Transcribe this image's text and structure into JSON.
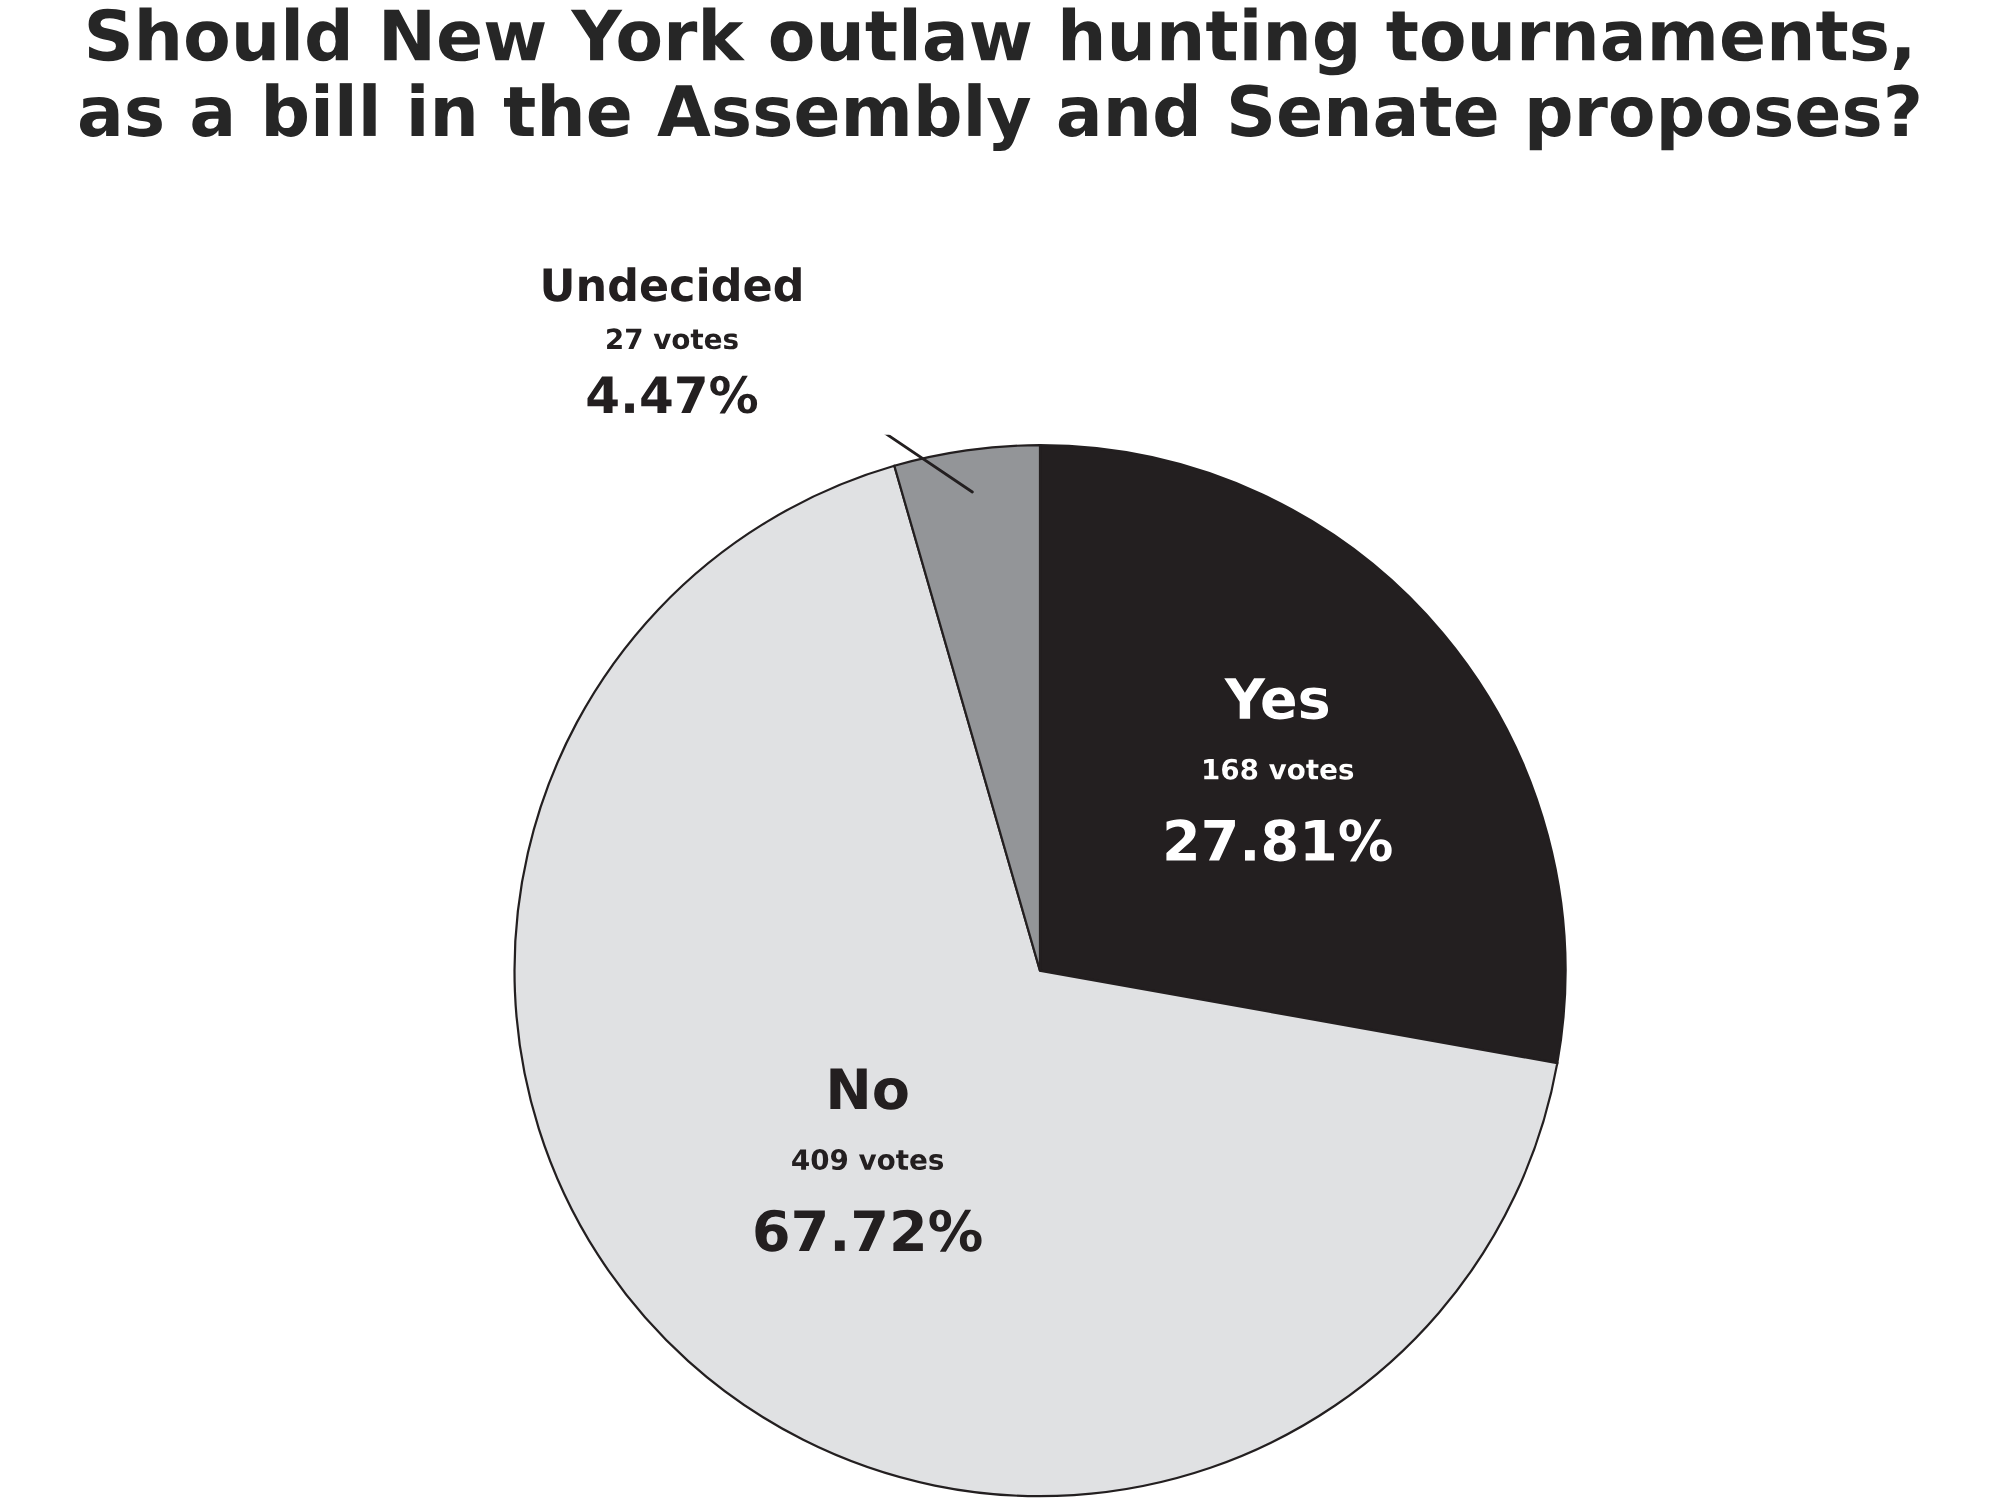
{
  "chart_data": {
    "type": "pie",
    "title": "Should New York outlaw hunting tournaments,\nas a bill in the Assembly and Senate proposes?",
    "categories": [
      "Yes",
      "No",
      "Undecided"
    ],
    "values": [
      168,
      409,
      27
    ],
    "colors": [
      "#231f20",
      "#e0e1e3",
      "#939598"
    ],
    "value_labels": [
      "168 votes\n27.81%",
      "409 votes\n67.72%",
      "27 votes\n4.47%"
    ]
  }
}
